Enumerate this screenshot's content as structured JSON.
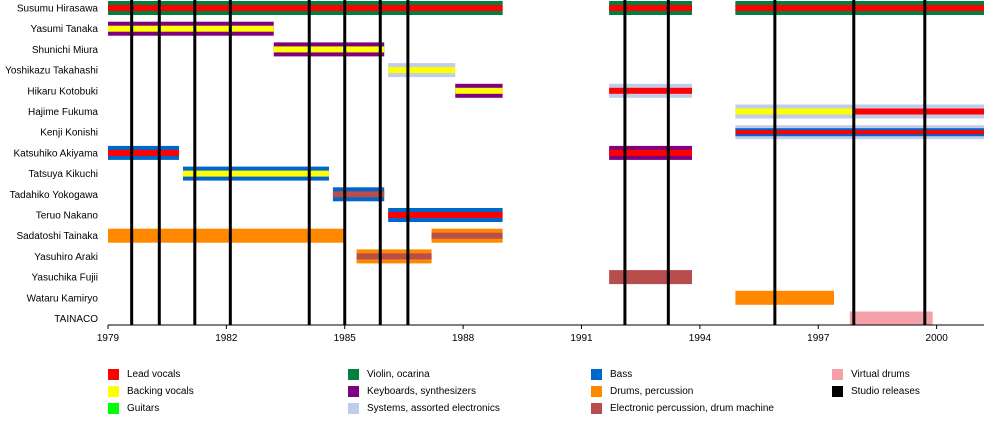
{
  "chart_data": {
    "type": "timeline",
    "title": "",
    "xlim": [
      1979,
      2001.2
    ],
    "x_ticks": [
      "1979",
      "1982",
      "1985",
      "1988",
      "1991",
      "1994",
      "1997",
      "2000"
    ],
    "roles": [
      {
        "key": "lead",
        "label": "Lead vocals",
        "color": "#ff0000"
      },
      {
        "key": "backing",
        "label": "Backing vocals",
        "color": "#ffff00"
      },
      {
        "key": "guitars",
        "label": "Guitars",
        "color": "#00ff00"
      },
      {
        "key": "violin",
        "label": "Violin, ocarina",
        "color": "#007f3f"
      },
      {
        "key": "keys",
        "label": "Keyboards, synthesizers",
        "color": "#800080"
      },
      {
        "key": "systems",
        "label": "Systems, assorted electronics",
        "color": "#c0cdea"
      },
      {
        "key": "bass",
        "label": "Bass",
        "color": "#0066cc"
      },
      {
        "key": "drums",
        "label": "Drums, percussion",
        "color": "#ff8800"
      },
      {
        "key": "edrums",
        "label": "Electronic percussion, drum machine",
        "color": "#b84d4d"
      },
      {
        "key": "virtual",
        "label": "Virtual drums",
        "color": "#f4a0a8"
      },
      {
        "key": "releases",
        "label": "Studio releases",
        "color": "#000000"
      }
    ],
    "members": [
      {
        "name": "Susumu Hirasawa",
        "spells": [
          {
            "start": 1979,
            "end": 1989,
            "roles": [
              "lead",
              "guitars",
              "violin"
            ]
          },
          {
            "start": 1991.7,
            "end": 1993.8,
            "roles": [
              "lead",
              "guitars",
              "violin"
            ]
          },
          {
            "start": 1994.9,
            "end": 2001.2,
            "roles": [
              "lead",
              "guitars",
              "violin"
            ]
          }
        ]
      },
      {
        "name": "Yasumi Tanaka",
        "spells": [
          {
            "start": 1979,
            "end": 1983.2,
            "roles": [
              "backing",
              "keys"
            ]
          }
        ]
      },
      {
        "name": "Shunichi Miura",
        "spells": [
          {
            "start": 1983.2,
            "end": 1986,
            "roles": [
              "backing",
              "keys"
            ]
          }
        ]
      },
      {
        "name": "Yoshikazu Takahashi",
        "spells": [
          {
            "start": 1986.1,
            "end": 1987.8,
            "roles": [
              "backing",
              "systems"
            ]
          }
        ]
      },
      {
        "name": "Hikaru Kotobuki",
        "spells": [
          {
            "start": 1987.8,
            "end": 1989,
            "roles": [
              "backing",
              "keys"
            ]
          },
          {
            "start": 1991.7,
            "end": 1993.8,
            "roles": [
              "lead",
              "systems"
            ]
          }
        ]
      },
      {
        "name": "Hajime Fukuma",
        "spells": [
          {
            "start": 1994.9,
            "end": 1997.9,
            "roles": [
              "backing",
              "systems"
            ]
          },
          {
            "start": 1997.9,
            "end": 2001.2,
            "roles": [
              "lead",
              "systems"
            ]
          }
        ]
      },
      {
        "name": "Kenji Konishi",
        "spells": [
          {
            "start": 1994.9,
            "end": 2001.2,
            "roles": [
              "lead",
              "bass",
              "systems"
            ]
          }
        ]
      },
      {
        "name": "Katsuhiko Akiyama",
        "spells": [
          {
            "start": 1979,
            "end": 1980.8,
            "roles": [
              "lead",
              "bass"
            ]
          },
          {
            "start": 1991.7,
            "end": 1993.8,
            "roles": [
              "lead",
              "keys"
            ]
          }
        ]
      },
      {
        "name": "Tatsuya Kikuchi",
        "spells": [
          {
            "start": 1980.9,
            "end": 1984.6,
            "roles": [
              "backing",
              "bass"
            ]
          }
        ]
      },
      {
        "name": "Tadahiko Yokogawa",
        "spells": [
          {
            "start": 1984.7,
            "end": 1986,
            "roles": [
              "edrums",
              "bass"
            ]
          }
        ]
      },
      {
        "name": "Teruo Nakano",
        "spells": [
          {
            "start": 1986.1,
            "end": 1989,
            "roles": [
              "lead",
              "bass"
            ]
          }
        ]
      },
      {
        "name": "Sadatoshi Tainaka",
        "spells": [
          {
            "start": 1979,
            "end": 1985,
            "roles": [
              "drums"
            ]
          },
          {
            "start": 1987.2,
            "end": 1989,
            "roles": [
              "edrums",
              "drums"
            ]
          }
        ]
      },
      {
        "name": "Yasuhiro Araki",
        "spells": [
          {
            "start": 1985.3,
            "end": 1987.2,
            "roles": [
              "edrums",
              "drums"
            ]
          }
        ]
      },
      {
        "name": "Yasuchika Fujii",
        "spells": [
          {
            "start": 1991.7,
            "end": 1993.8,
            "roles": [
              "edrums"
            ]
          }
        ]
      },
      {
        "name": "Wataru Kamiryo",
        "spells": [
          {
            "start": 1994.9,
            "end": 1997.4,
            "roles": [
              "drums"
            ]
          }
        ]
      },
      {
        "name": "TAINACO",
        "spells": [
          {
            "start": 1997.8,
            "end": 1999.9,
            "roles": [
              "virtual"
            ]
          }
        ]
      }
    ],
    "releases": [
      1979.6,
      1980.3,
      1981.2,
      1982.1,
      1984.1,
      1985,
      1985.9,
      1986.6,
      1992.1,
      1993.2,
      1995.9,
      1997.9,
      1999.7
    ],
    "legend_position": "bottom"
  }
}
